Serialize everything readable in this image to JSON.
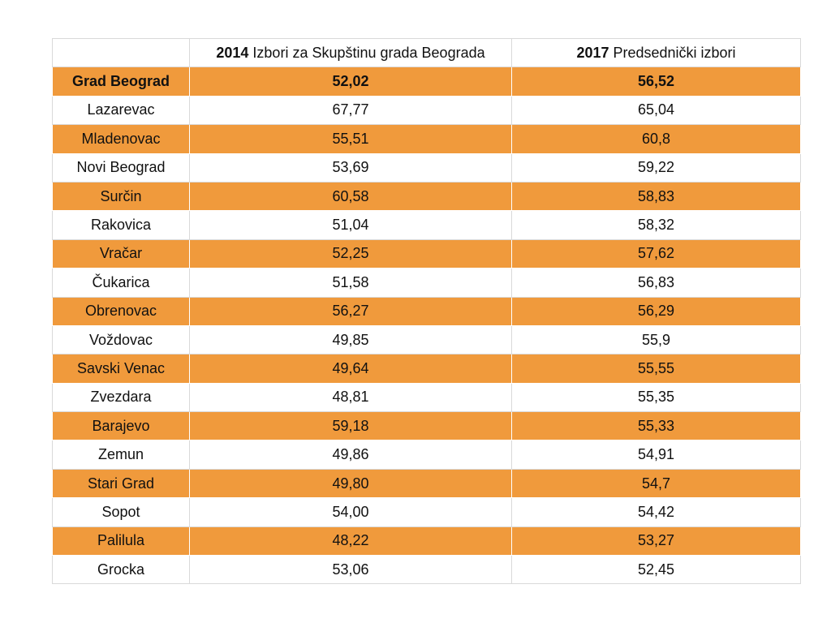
{
  "table": {
    "headers": [
      {
        "year": "",
        "label": ""
      },
      {
        "year": "2014",
        "label": " Izbori za Skupštinu grada Beograda"
      },
      {
        "year": "2017",
        "label": " Predsednički izbori"
      }
    ],
    "rows": [
      {
        "name": "Grad Beograd",
        "v2014": "52,02",
        "v2017": "56,52"
      },
      {
        "name": "Lazarevac",
        "v2014": "67,77",
        "v2017": "65,04"
      },
      {
        "name": "Mladenovac",
        "v2014": "55,51",
        "v2017": "60,8"
      },
      {
        "name": "Novi Beograd",
        "v2014": "53,69",
        "v2017": "59,22"
      },
      {
        "name": "Surčin",
        "v2014": "60,58",
        "v2017": "58,83"
      },
      {
        "name": "Rakovica",
        "v2014": "51,04",
        "v2017": "58,32"
      },
      {
        "name": "Vračar",
        "v2014": "52,25",
        "v2017": "57,62"
      },
      {
        "name": "Čukarica",
        "v2014": "51,58",
        "v2017": "56,83"
      },
      {
        "name": "Obrenovac",
        "v2014": "56,27",
        "v2017": "56,29"
      },
      {
        "name": "Voždovac",
        "v2014": "49,85",
        "v2017": "55,9"
      },
      {
        "name": "Savski Venac",
        "v2014": "49,64",
        "v2017": "55,55"
      },
      {
        "name": "Zvezdara",
        "v2014": "48,81",
        "v2017": "55,35"
      },
      {
        "name": "Barajevo",
        "v2014": "59,18",
        "v2017": "55,33"
      },
      {
        "name": "Zemun",
        "v2014": "49,86",
        "v2017": "54,91"
      },
      {
        "name": "Stari Grad",
        "v2014": "49,80",
        "v2017": "54,7"
      },
      {
        "name": "Sopot",
        "v2014": "54,00",
        "v2017": "54,42"
      },
      {
        "name": "Palilula",
        "v2014": "48,22",
        "v2017": "53,27"
      },
      {
        "name": "Grocka",
        "v2014": "53,06",
        "v2017": "52,45"
      }
    ]
  },
  "colors": {
    "stripe": "#f09a3c",
    "plain": "#ffffff",
    "grid": "#d9d9d9"
  }
}
